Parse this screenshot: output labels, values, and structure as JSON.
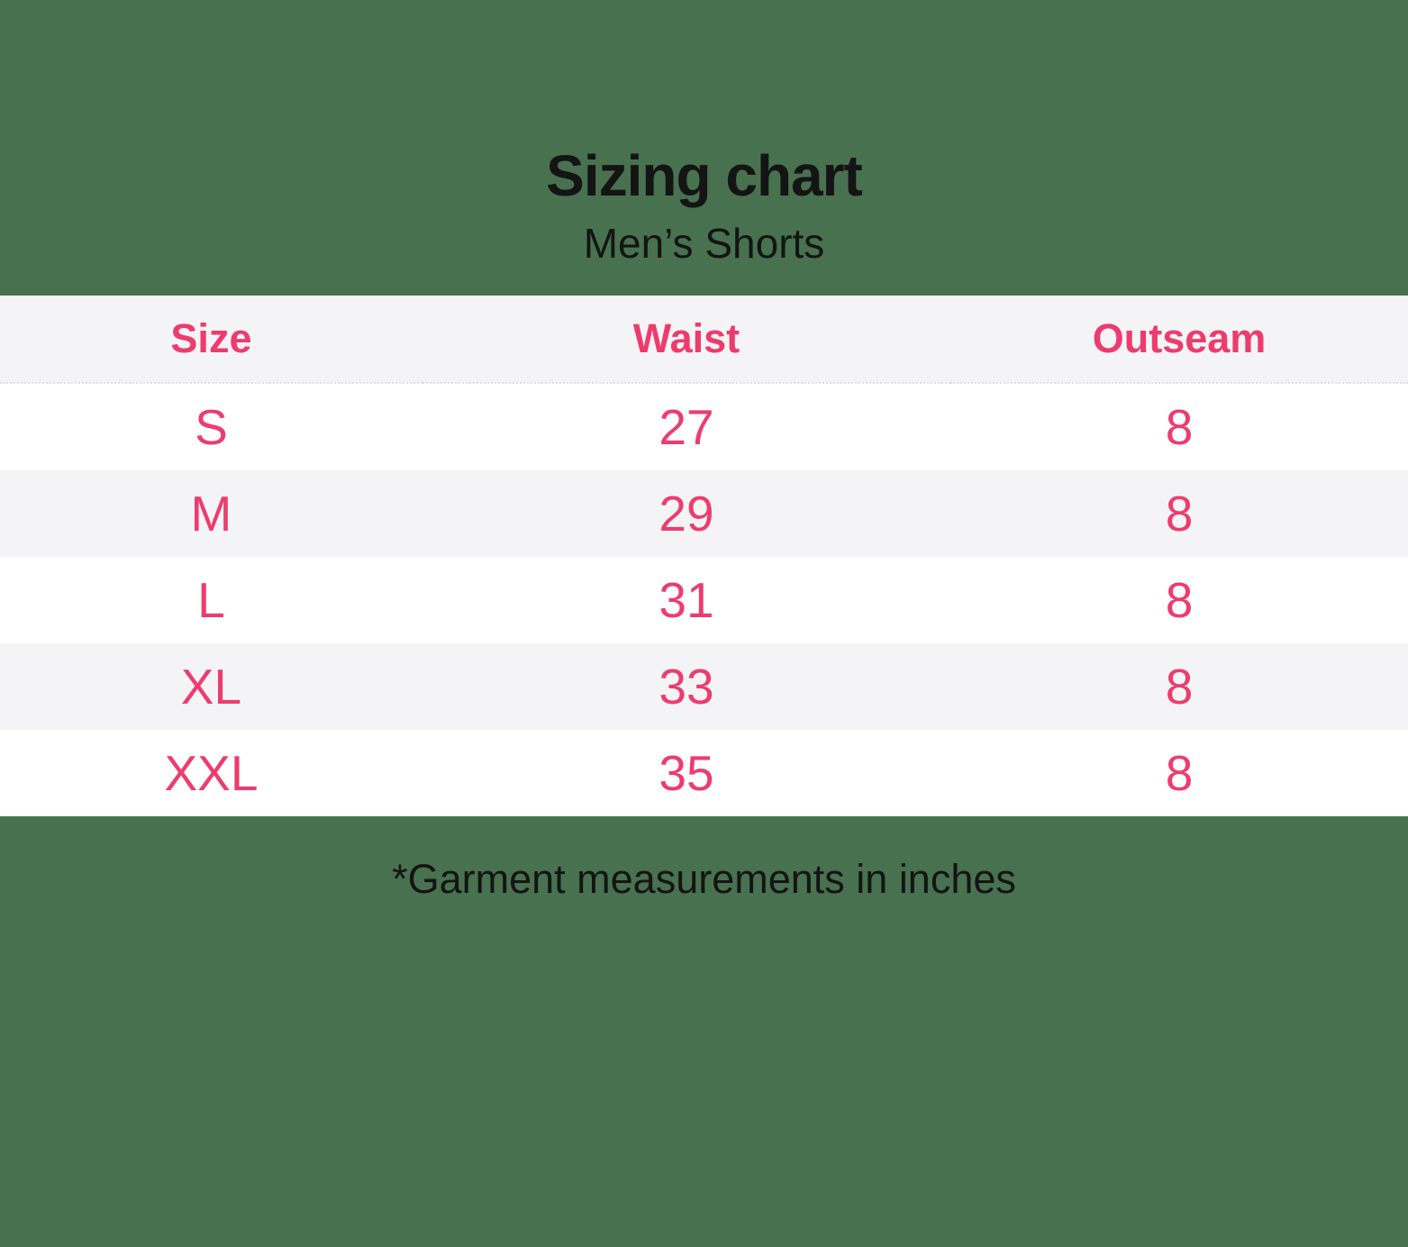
{
  "title": "Sizing chart",
  "subtitle": "Men’s Shorts",
  "note": "*Garment measurements in inches",
  "table": {
    "columns": [
      "Size",
      "Waist",
      "Outseam"
    ],
    "rows": [
      {
        "size": "S",
        "waist": "27",
        "outseam": "8"
      },
      {
        "size": "M",
        "waist": "29",
        "outseam": "8"
      },
      {
        "size": "L",
        "waist": "31",
        "outseam": "8"
      },
      {
        "size": "XL",
        "waist": "33",
        "outseam": "8"
      },
      {
        "size": "XXL",
        "waist": "35",
        "outseam": "8"
      }
    ]
  },
  "colors": {
    "background": "#48714f",
    "accent_pink": "#ee3b6e",
    "row_alt": "#f4f4f6",
    "row_white": "#ffffff",
    "text_black": "#141414"
  },
  "chart_data": {
    "type": "table",
    "title": "Sizing chart",
    "subtitle": "Men’s Shorts",
    "columns": [
      "Size",
      "Waist",
      "Outseam"
    ],
    "rows": [
      [
        "S",
        27,
        8
      ],
      [
        "M",
        29,
        8
      ],
      [
        "L",
        31,
        8
      ],
      [
        "XL",
        33,
        8
      ],
      [
        "XXL",
        35,
        8
      ]
    ],
    "units": "inches",
    "footnote": "*Garment measurements in inches"
  }
}
